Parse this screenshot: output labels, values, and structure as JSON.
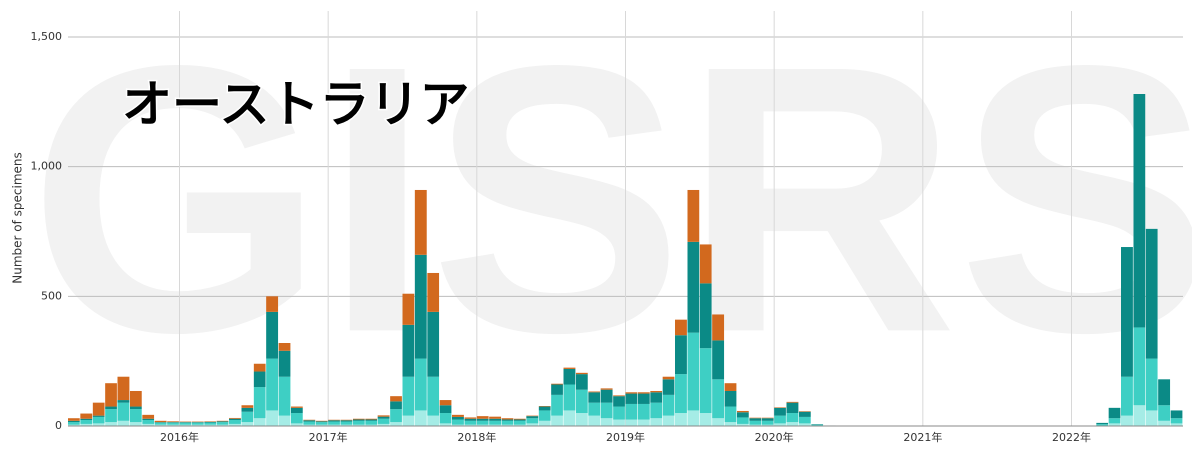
{
  "chart_data": {
    "type": "stacked-bar",
    "title": "オーストラリア",
    "watermark": "GISRS",
    "y_label": "Number of specimens",
    "xlim": [
      2015.25,
      2022.75
    ],
    "xticks": [
      {
        "value": 2016,
        "label": "2016年"
      },
      {
        "value": 2017,
        "label": "2017年"
      },
      {
        "value": 2018,
        "label": "2018年"
      },
      {
        "value": 2019,
        "label": "2019年"
      },
      {
        "value": 2020,
        "label": "2020年"
      },
      {
        "value": 2021,
        "label": "2021年"
      },
      {
        "value": 2022,
        "label": "2022年"
      }
    ],
    "ylim": [
      0,
      1600
    ],
    "yticks": [
      0,
      500,
      {
        "value": 1000,
        "label": "1,000"
      },
      {
        "value": 1500,
        "label": "1,500"
      }
    ],
    "grid": true,
    "x": [
      2015.25,
      2015.333,
      2015.417,
      2015.5,
      2015.583,
      2015.667,
      2015.75,
      2015.833,
      2015.917,
      2016,
      2016.083,
      2016.167,
      2016.25,
      2016.333,
      2016.417,
      2016.5,
      2016.583,
      2016.667,
      2016.75,
      2016.833,
      2016.917,
      2017,
      2017.083,
      2017.167,
      2017.25,
      2017.333,
      2017.417,
      2017.5,
      2017.583,
      2017.667,
      2017.75,
      2017.833,
      2017.917,
      2018,
      2018.083,
      2018.167,
      2018.25,
      2018.333,
      2018.417,
      2018.5,
      2018.583,
      2018.667,
      2018.75,
      2018.833,
      2018.917,
      2019,
      2019.083,
      2019.167,
      2019.25,
      2019.333,
      2019.417,
      2019.5,
      2019.583,
      2019.667,
      2019.75,
      2019.833,
      2019.917,
      2020,
      2020.083,
      2020.167,
      2020.25,
      2020.333,
      2020.417,
      2020.5,
      2020.583,
      2020.667,
      2020.75,
      2020.833,
      2020.917,
      2021,
      2021.083,
      2021.167,
      2021.25,
      2021.333,
      2021.417,
      2021.5,
      2021.583,
      2021.667,
      2021.75,
      2021.833,
      2021.917,
      2022,
      2022.083,
      2022.167,
      2022.25,
      2022.333,
      2022.417,
      2022.5,
      2022.583,
      2022.667
    ],
    "series": [
      {
        "color": "#a5ece6",
        "values": [
          5,
          8,
          10,
          15,
          20,
          15,
          8,
          5,
          5,
          5,
          5,
          5,
          5,
          8,
          15,
          30,
          60,
          40,
          10,
          5,
          5,
          5,
          5,
          5,
          5,
          8,
          15,
          40,
          60,
          40,
          10,
          5,
          5,
          5,
          5,
          5,
          5,
          10,
          20,
          40,
          60,
          50,
          40,
          30,
          25,
          25,
          25,
          30,
          40,
          50,
          60,
          50,
          30,
          15,
          8,
          5,
          5,
          10,
          15,
          10,
          2,
          1,
          0,
          0,
          0,
          0,
          0,
          0,
          0,
          0,
          0,
          0,
          0,
          0,
          0,
          0,
          0,
          0,
          0,
          0,
          0,
          0,
          0,
          2,
          10,
          40,
          80,
          60,
          20,
          10
        ]
      },
      {
        "color": "#3ecfc4",
        "values": [
          10,
          15,
          25,
          50,
          70,
          50,
          15,
          8,
          8,
          8,
          8,
          8,
          10,
          15,
          40,
          120,
          200,
          150,
          40,
          12,
          10,
          12,
          12,
          15,
          15,
          20,
          50,
          150,
          200,
          150,
          40,
          20,
          15,
          15,
          15,
          15,
          15,
          20,
          40,
          80,
          100,
          90,
          50,
          60,
          50,
          60,
          60,
          60,
          80,
          150,
          300,
          250,
          150,
          60,
          25,
          15,
          15,
          30,
          35,
          25,
          3,
          1,
          0,
          0,
          0,
          0,
          0,
          0,
          0,
          0,
          0,
          0,
          0,
          0,
          0,
          0,
          0,
          0,
          0,
          0,
          0,
          0,
          0,
          5,
          20,
          150,
          300,
          200,
          60,
          20
        ]
      },
      {
        "color": "#0b8a86",
        "values": [
          5,
          5,
          5,
          10,
          10,
          10,
          5,
          2,
          2,
          2,
          2,
          3,
          3,
          5,
          15,
          60,
          180,
          100,
          20,
          5,
          3,
          5,
          5,
          5,
          5,
          8,
          30,
          200,
          400,
          250,
          30,
          10,
          8,
          8,
          8,
          5,
          5,
          8,
          15,
          40,
          60,
          60,
          40,
          50,
          40,
          40,
          40,
          40,
          60,
          150,
          350,
          250,
          150,
          60,
          20,
          10,
          10,
          30,
          40,
          20,
          2,
          0,
          0,
          0,
          0,
          0,
          0,
          0,
          0,
          0,
          0,
          0,
          0,
          0,
          0,
          0,
          0,
          0,
          0,
          0,
          0,
          0,
          0,
          5,
          40,
          500,
          900,
          500,
          100,
          30
        ]
      },
      {
        "color": "#d2691e",
        "values": [
          10,
          20,
          50,
          90,
          90,
          60,
          15,
          5,
          3,
          2,
          2,
          2,
          2,
          3,
          10,
          30,
          60,
          30,
          5,
          2,
          2,
          2,
          2,
          3,
          3,
          5,
          20,
          120,
          250,
          150,
          20,
          8,
          5,
          10,
          8,
          5,
          3,
          2,
          2,
          3,
          5,
          5,
          3,
          5,
          3,
          5,
          5,
          5,
          10,
          60,
          200,
          150,
          100,
          30,
          5,
          2,
          2,
          2,
          3,
          2,
          0,
          0,
          0,
          0,
          0,
          0,
          0,
          0,
          0,
          0,
          0,
          0,
          0,
          0,
          0,
          0,
          0,
          0,
          0,
          0,
          0,
          0,
          0,
          0,
          0,
          0,
          0,
          0,
          0,
          0
        ]
      }
    ]
  }
}
